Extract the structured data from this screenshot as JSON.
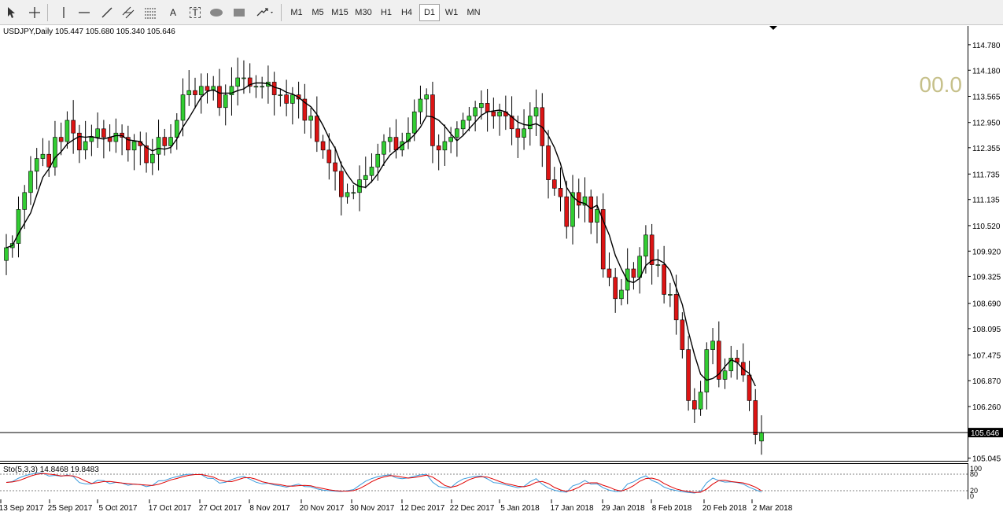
{
  "toolbar": {
    "tools": [
      {
        "name": "cursor-tool",
        "icon": "cursor-arrow-icon"
      },
      {
        "name": "crosshair-tool",
        "icon": "crosshair-icon"
      },
      {
        "name": "vertical-line-tool",
        "icon": "vertical-line-icon"
      },
      {
        "name": "horizontal-line-tool",
        "icon": "horizontal-line-icon"
      },
      {
        "name": "trendline-tool",
        "icon": "trendline-icon"
      },
      {
        "name": "equidistant-channel-tool",
        "icon": "channel-icon"
      },
      {
        "name": "fibonacci-tool",
        "icon": "fibonacci-icon"
      },
      {
        "name": "text-tool",
        "icon": "text-a-icon"
      },
      {
        "name": "text-label-tool",
        "icon": "text-label-icon"
      },
      {
        "name": "ellipse-tool",
        "icon": "ellipse-icon"
      },
      {
        "name": "rectangle-tool",
        "icon": "rectangle-icon"
      },
      {
        "name": "arrows-tool",
        "icon": "arrows-icon"
      }
    ],
    "text_tool_label": "A",
    "text_label_tool_label": "T",
    "timeframes": [
      "M1",
      "M5",
      "M15",
      "M30",
      "H1",
      "H4",
      "D1",
      "W1",
      "MN"
    ],
    "active_timeframe": "D1"
  },
  "chart": {
    "title": "USDJPY,Daily  105.447 105.680 105.340 105.646",
    "overlay_number": "00.0",
    "current_price_label": "105.646",
    "colors": {
      "bull": "#32cd32",
      "bear": "#dc1414",
      "wick": "#000000",
      "ma": "#000000",
      "stoch_main": "#3a9bdc",
      "stoch_signal": "#e00000"
    }
  },
  "indicator": {
    "title": "Sto(5,3,3) 14.8468 19.8483",
    "levels": [
      "100",
      "80",
      "20",
      "0"
    ]
  },
  "chart_data": {
    "type": "candlestick",
    "symbol": "USDJPY",
    "timeframe": "Daily",
    "ohlc_last": {
      "open": 105.447,
      "high": 105.68,
      "low": 105.34,
      "close": 105.646
    },
    "price_axis_ticks": [
      114.78,
      114.18,
      113.565,
      112.95,
      112.355,
      111.735,
      111.135,
      110.52,
      109.92,
      109.325,
      108.69,
      108.095,
      107.475,
      106.87,
      106.26,
      105.045
    ],
    "date_axis_ticks": [
      "13 Sep 2017",
      "25 Sep 2017",
      "5 Oct 2017",
      "17 Oct 2017",
      "27 Oct 2017",
      "8 Nov 2017",
      "20 Nov 2017",
      "30 Nov 2017",
      "12 Dec 2017",
      "22 Dec 2017",
      "5 Jan 2018",
      "17 Jan 2018",
      "29 Jan 2018",
      "8 Feb 2018",
      "20 Feb 2018",
      "2 Mar 2018"
    ],
    "ylim": [
      104.95,
      115.15
    ],
    "closes": [
      110.0,
      110.1,
      110.9,
      111.3,
      111.8,
      112.1,
      112.2,
      111.9,
      112.6,
      112.5,
      113.0,
      112.7,
      112.3,
      112.5,
      112.6,
      112.8,
      112.6,
      112.5,
      112.7,
      112.6,
      112.3,
      112.5,
      112.4,
      112.0,
      112.2,
      112.6,
      112.4,
      112.6,
      113.0,
      113.6,
      113.7,
      113.6,
      113.8,
      113.7,
      113.8,
      113.3,
      113.6,
      113.8,
      114.0,
      114.0,
      113.8,
      113.8,
      113.8,
      113.9,
      113.6,
      113.6,
      113.4,
      113.6,
      113.5,
      113.0,
      113.1,
      112.5,
      112.3,
      112.0,
      111.8,
      111.2,
      111.3,
      111.3,
      111.6,
      111.7,
      111.9,
      112.2,
      112.5,
      112.6,
      112.3,
      112.5,
      112.7,
      113.2,
      113.5,
      113.6,
      112.4,
      112.3,
      112.5,
      112.6,
      112.8,
      113.0,
      113.1,
      113.3,
      113.4,
      113.2,
      113.1,
      113.2,
      113.1,
      112.8,
      112.6,
      112.8,
      113.1,
      113.3,
      112.4,
      111.6,
      111.4,
      111.2,
      110.5,
      111.3,
      111.0,
      111.2,
      110.6,
      110.9,
      109.5,
      109.3,
      108.8,
      109.0,
      109.5,
      109.3,
      109.8,
      110.3,
      109.6,
      109.6,
      108.9,
      108.9,
      108.3,
      107.6,
      106.4,
      106.2,
      106.6,
      107.6,
      107.8,
      106.9,
      107.1,
      107.4,
      107.3,
      107.0,
      106.4,
      105.6,
      105.646
    ],
    "moving_average": {
      "type": "line",
      "period": "unlabeled"
    },
    "stochastic": {
      "k": 14.8468,
      "d": 19.8483,
      "params": "5,3,3"
    }
  }
}
